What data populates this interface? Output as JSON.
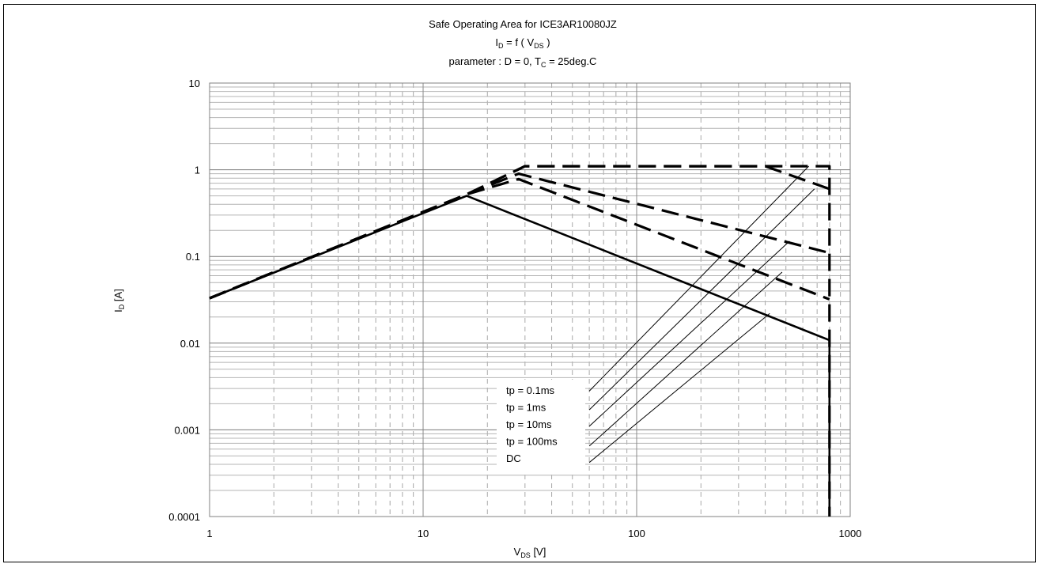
{
  "chart_data": {
    "type": "line",
    "title": "Safe Operating Area for ICE3AR10080JZ",
    "subtitle_lines": [
      {
        "main": "I",
        "sub": "D",
        "rest": " = f ( V",
        "sub2": "DS",
        "rest2": " )"
      },
      {
        "main": "parameter : D = 0, T",
        "sub": "C",
        "rest": " = 25deg.C"
      }
    ],
    "xlabel": {
      "main": "V",
      "sub": "DS",
      "rest": " [V]"
    },
    "ylabel": {
      "main": "I",
      "sub": "D",
      "rest": " [A]"
    },
    "x_scale": "log",
    "y_scale": "log",
    "xlim": [
      1,
      1000
    ],
    "ylim": [
      0.0001,
      10
    ],
    "x_ticks": [
      {
        "v": 1,
        "label": "1"
      },
      {
        "v": 10,
        "label": "10"
      },
      {
        "v": 100,
        "label": "100"
      },
      {
        "v": 1000,
        "label": "1000"
      }
    ],
    "y_ticks": [
      {
        "v": 10,
        "label": "10"
      },
      {
        "v": 1,
        "label": "1"
      },
      {
        "v": 0.1,
        "label": "0.1"
      },
      {
        "v": 0.01,
        "label": "0.01"
      },
      {
        "v": 0.001,
        "label": "0.001"
      },
      {
        "v": 0.0001,
        "label": "0.0001"
      }
    ],
    "grid": true,
    "series": [
      {
        "name": "tp = 0.1ms",
        "style": "dashed",
        "points": [
          [
            1,
            0.033
          ],
          [
            16,
            0.52
          ],
          [
            30,
            1.1
          ],
          [
            800,
            1.1
          ],
          [
            800,
            0.0001
          ]
        ]
      },
      {
        "name": "tp = 1ms",
        "style": "dashed",
        "points": [
          [
            1,
            0.033
          ],
          [
            16,
            0.52
          ],
          [
            30,
            1.1
          ],
          [
            400,
            1.1
          ],
          [
            800,
            0.6
          ]
        ]
      },
      {
        "name": "tp = 10ms",
        "style": "dashed",
        "points": [
          [
            1,
            0.033
          ],
          [
            16,
            0.52
          ],
          [
            28,
            0.9
          ],
          [
            800,
            0.11
          ]
        ]
      },
      {
        "name": "tp = 100ms",
        "style": "dashed",
        "points": [
          [
            1,
            0.033
          ],
          [
            16,
            0.52
          ],
          [
            28,
            0.78
          ],
          [
            800,
            0.032
          ]
        ]
      },
      {
        "name": "DC",
        "style": "solid",
        "points": [
          [
            1,
            0.033
          ],
          [
            16,
            0.5
          ],
          [
            800,
            0.0108
          ],
          [
            800,
            0.0001
          ]
        ]
      }
    ],
    "legend": {
      "placement": "bottom-center",
      "entries": [
        "tp = 0.1ms",
        "tp = 1ms",
        "tp = 10ms",
        "tp = 100ms",
        "DC"
      ],
      "leader_lines": [
        {
          "from": [
            60,
            0.0028
          ],
          "to": [
            640,
            1.1
          ]
        },
        {
          "from": [
            60,
            0.0017
          ],
          "to": [
            680,
            0.6
          ]
        },
        {
          "from": [
            60,
            0.0011
          ],
          "to": [
            520,
            0.15
          ]
        },
        {
          "from": [
            60,
            0.00065
          ],
          "to": [
            480,
            0.066
          ]
        },
        {
          "from": [
            60,
            0.00042
          ],
          "to": [
            420,
            0.022
          ]
        }
      ]
    }
  }
}
